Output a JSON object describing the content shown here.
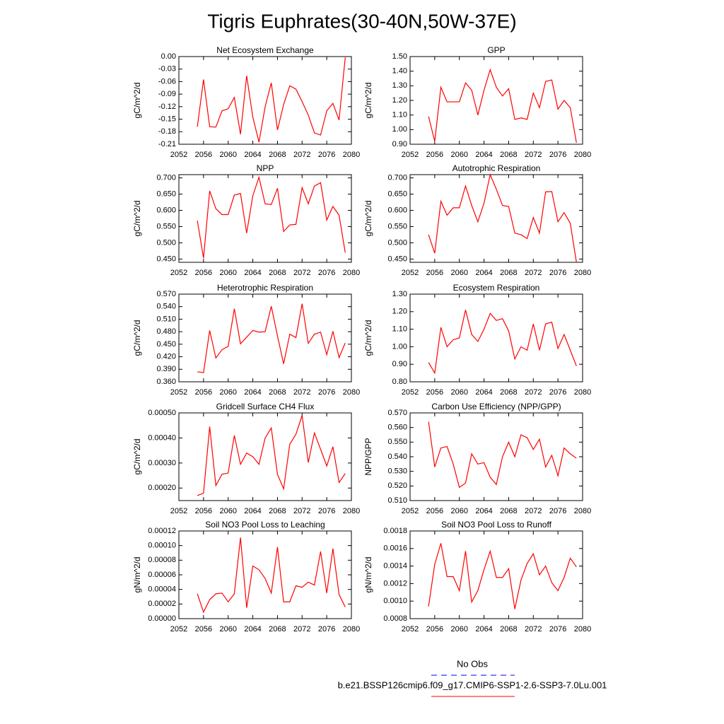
{
  "title": "Tigris Euphrates(30-40N,50W-37E)",
  "legend": [
    {
      "label": "No Obs",
      "color": "#0000ff",
      "dash": true
    },
    {
      "label": "b.e21.BSSP126cmip6.f09_g17.CMIP6-SSP1-2.6-SSP3-7.0Lu.001",
      "color": "#ff0000",
      "dash": false
    }
  ],
  "chart_data": [
    {
      "type": "line",
      "title": "Net Ecosystem Exchange",
      "y_label": "gC/m^2/d",
      "color": "#ff0000",
      "x": [
        2055,
        2056,
        2057,
        2058,
        2059,
        2060,
        2061,
        2062,
        2063,
        2064,
        2065,
        2066,
        2067,
        2068,
        2069,
        2070,
        2071,
        2072,
        2073,
        2074,
        2075,
        2076,
        2077,
        2078,
        2079
      ],
      "values": [
        -0.168,
        -0.055,
        -0.168,
        -0.169,
        -0.13,
        -0.125,
        -0.098,
        -0.186,
        -0.046,
        -0.145,
        -0.205,
        -0.12,
        -0.063,
        -0.176,
        -0.115,
        -0.07,
        -0.078,
        -0.108,
        -0.14,
        -0.183,
        -0.188,
        -0.13,
        -0.112,
        -0.152,
        -0.002
      ],
      "xlim": [
        2052,
        2080
      ],
      "xticks": [
        2052,
        2056,
        2060,
        2064,
        2068,
        2072,
        2076,
        2080
      ],
      "ylim": [
        -0.21,
        0.0
      ],
      "yticks": [
        -0.21,
        -0.18,
        -0.15,
        -0.12,
        -0.09,
        -0.06,
        -0.03,
        {
          "value": 0.0,
          "label": "0.00"
        }
      ]
    },
    {
      "type": "line",
      "title": "GPP",
      "y_label": "gC/m^2/d",
      "color": "#ff0000",
      "x": [
        2055,
        2056,
        2057,
        2058,
        2059,
        2060,
        2061,
        2062,
        2063,
        2064,
        2065,
        2066,
        2067,
        2068,
        2069,
        2070,
        2071,
        2072,
        2073,
        2074,
        2075,
        2076,
        2077,
        2078,
        2079
      ],
      "values": [
        1.09,
        0.92,
        1.29,
        1.19,
        1.19,
        1.19,
        1.32,
        1.27,
        1.1,
        1.27,
        1.41,
        1.29,
        1.23,
        1.28,
        1.07,
        1.08,
        1.07,
        1.25,
        1.15,
        1.33,
        1.34,
        1.14,
        1.2,
        1.15,
        0.91
      ],
      "xlim": [
        2052,
        2080
      ],
      "xticks": [
        2052,
        2056,
        2060,
        2064,
        2068,
        2072,
        2076,
        2080
      ],
      "ylim": [
        0.9,
        1.5
      ],
      "yticks": [
        {
          "value": 0.9,
          "label": "0.90"
        },
        {
          "value": 1.0,
          "label": "1.00"
        },
        {
          "value": 1.1,
          "label": "1.10"
        },
        {
          "value": 1.2,
          "label": "1.20"
        },
        {
          "value": 1.3,
          "label": "1.30"
        },
        {
          "value": 1.4,
          "label": "1.40"
        },
        {
          "value": 1.5,
          "label": "1.50"
        }
      ]
    },
    {
      "type": "line",
      "title": "NPP",
      "y_label": "gC/m^2/d",
      "color": "#ff0000",
      "x": [
        2055,
        2056,
        2057,
        2058,
        2059,
        2060,
        2061,
        2062,
        2063,
        2064,
        2065,
        2066,
        2067,
        2068,
        2069,
        2070,
        2071,
        2072,
        2073,
        2074,
        2075,
        2076,
        2077,
        2078,
        2079
      ],
      "values": [
        0.568,
        0.453,
        0.66,
        0.605,
        0.587,
        0.587,
        0.647,
        0.652,
        0.53,
        0.645,
        0.702,
        0.62,
        0.618,
        0.668,
        0.535,
        0.555,
        0.557,
        0.67,
        0.62,
        0.675,
        0.685,
        0.57,
        0.612,
        0.585,
        0.47
      ],
      "xlim": [
        2052,
        2080
      ],
      "xticks": [
        2052,
        2056,
        2060,
        2064,
        2068,
        2072,
        2076,
        2080
      ],
      "ylim": [
        0.44,
        0.71
      ],
      "yticks": [
        {
          "value": 0.45,
          "label": "0.450"
        },
        {
          "value": 0.5,
          "label": "0.500"
        },
        {
          "value": 0.55,
          "label": "0.550"
        },
        {
          "value": 0.6,
          "label": "0.600"
        },
        {
          "value": 0.65,
          "label": "0.650"
        },
        {
          "value": 0.7,
          "label": "0.700"
        }
      ]
    },
    {
      "type": "line",
      "title": "Autotrophic Respiration",
      "y_label": "gC/m^2/d",
      "color": "#ff0000",
      "x": [
        2055,
        2056,
        2057,
        2058,
        2059,
        2060,
        2061,
        2062,
        2063,
        2064,
        2065,
        2066,
        2067,
        2068,
        2069,
        2070,
        2071,
        2072,
        2073,
        2074,
        2075,
        2076,
        2077,
        2078,
        2079
      ],
      "values": [
        0.525,
        0.468,
        0.628,
        0.585,
        0.608,
        0.608,
        0.675,
        0.615,
        0.565,
        0.622,
        0.71,
        0.665,
        0.615,
        0.612,
        0.53,
        0.525,
        0.513,
        0.578,
        0.53,
        0.657,
        0.658,
        0.565,
        0.593,
        0.56,
        0.44
      ],
      "xlim": [
        2052,
        2080
      ],
      "xticks": [
        2052,
        2056,
        2060,
        2064,
        2068,
        2072,
        2076,
        2080
      ],
      "ylim": [
        0.44,
        0.71
      ],
      "yticks": [
        {
          "value": 0.45,
          "label": "0.450"
        },
        {
          "value": 0.5,
          "label": "0.500"
        },
        {
          "value": 0.55,
          "label": "0.550"
        },
        {
          "value": 0.6,
          "label": "0.600"
        },
        {
          "value": 0.65,
          "label": "0.650"
        },
        {
          "value": 0.7,
          "label": "0.700"
        }
      ]
    },
    {
      "type": "line",
      "title": "Heterotrophic Respiration",
      "y_label": "gC/m^2/d",
      "color": "#ff0000",
      "x": [
        2055,
        2056,
        2057,
        2058,
        2059,
        2060,
        2061,
        2062,
        2063,
        2064,
        2065,
        2066,
        2067,
        2068,
        2069,
        2070,
        2071,
        2072,
        2073,
        2074,
        2075,
        2076,
        2077,
        2078,
        2079
      ],
      "values": [
        0.384,
        0.382,
        0.483,
        0.417,
        0.437,
        0.445,
        0.535,
        0.451,
        0.467,
        0.483,
        0.479,
        0.48,
        0.541,
        0.47,
        0.403,
        0.474,
        0.466,
        0.547,
        0.452,
        0.474,
        0.479,
        0.425,
        0.481,
        0.418,
        0.453
      ],
      "xlim": [
        2052,
        2080
      ],
      "xticks": [
        2052,
        2056,
        2060,
        2064,
        2068,
        2072,
        2076,
        2080
      ],
      "ylim": [
        0.36,
        0.57
      ],
      "yticks": [
        {
          "value": 0.36,
          "label": "0.360"
        },
        {
          "value": 0.39,
          "label": "0.390"
        },
        {
          "value": 0.42,
          "label": "0.420"
        },
        {
          "value": 0.45,
          "label": "0.450"
        },
        {
          "value": 0.48,
          "label": "0.480"
        },
        {
          "value": 0.51,
          "label": "0.510"
        },
        {
          "value": 0.54,
          "label": "0.540"
        },
        {
          "value": 0.57,
          "label": "0.570"
        }
      ]
    },
    {
      "type": "line",
      "title": "Ecosystem Respiration",
      "y_label": "gC/m^2/d",
      "color": "#ff0000",
      "x": [
        2055,
        2056,
        2057,
        2058,
        2059,
        2060,
        2061,
        2062,
        2063,
        2064,
        2065,
        2066,
        2067,
        2068,
        2069,
        2070,
        2071,
        2072,
        2073,
        2074,
        2075,
        2076,
        2077,
        2078,
        2079
      ],
      "values": [
        0.91,
        0.85,
        1.11,
        1.0,
        1.04,
        1.05,
        1.21,
        1.07,
        1.03,
        1.1,
        1.19,
        1.15,
        1.16,
        1.09,
        0.93,
        1.0,
        0.98,
        1.13,
        0.98,
        1.13,
        1.14,
        0.99,
        1.07,
        0.98,
        0.89
      ],
      "xlim": [
        2052,
        2080
      ],
      "xticks": [
        2052,
        2056,
        2060,
        2064,
        2068,
        2072,
        2076,
        2080
      ],
      "ylim": [
        0.8,
        1.3
      ],
      "yticks": [
        {
          "value": 0.8,
          "label": "0.80"
        },
        {
          "value": 0.9,
          "label": "0.90"
        },
        {
          "value": 1.0,
          "label": "1.00"
        },
        {
          "value": 1.1,
          "label": "1.10"
        },
        {
          "value": 1.2,
          "label": "1.20"
        },
        {
          "value": 1.3,
          "label": "1.30"
        }
      ]
    },
    {
      "type": "line",
      "title": "Gridcell Surface CH4 Flux",
      "y_label": "gC/m^2/d",
      "color": "#ff0000",
      "x": [
        2055,
        2056,
        2057,
        2058,
        2059,
        2060,
        2061,
        2062,
        2063,
        2064,
        2065,
        2066,
        2067,
        2068,
        2069,
        2070,
        2071,
        2072,
        2073,
        2074,
        2075,
        2076,
        2077,
        2078,
        2079
      ],
      "values": [
        0.00017,
        0.00018,
        0.000445,
        0.00021,
        0.000255,
        0.00026,
        0.00041,
        0.000295,
        0.00034,
        0.000325,
        0.000295,
        0.0004,
        0.00044,
        0.000255,
        0.000197,
        0.000375,
        0.000415,
        0.00049,
        0.000302,
        0.00042,
        0.000355,
        0.000288,
        0.000365,
        0.000222,
        0.000258
      ],
      "xlim": [
        2052,
        2080
      ],
      "xticks": [
        2052,
        2056,
        2060,
        2064,
        2068,
        2072,
        2076,
        2080
      ],
      "ylim": [
        0.00015,
        0.0005
      ],
      "yticks": [
        {
          "value": 0.0002,
          "label": "0.00020"
        },
        {
          "value": 0.0003,
          "label": "0.00030"
        },
        {
          "value": 0.0004,
          "label": "0.00040"
        },
        {
          "value": 0.0005,
          "label": "0.00050"
        }
      ]
    },
    {
      "type": "line",
      "title": "Carbon Use Efficiency (NPP/GPP)",
      "y_label": "NPP/GPP",
      "color": "#ff0000",
      "x": [
        2055,
        2056,
        2057,
        2058,
        2059,
        2060,
        2061,
        2062,
        2063,
        2064,
        2065,
        2066,
        2067,
        2068,
        2069,
        2070,
        2071,
        2072,
        2073,
        2074,
        2075,
        2076,
        2077,
        2078,
        2079
      ],
      "values": [
        0.564,
        0.533,
        0.546,
        0.547,
        0.535,
        0.519,
        0.522,
        0.542,
        0.535,
        0.536,
        0.526,
        0.521,
        0.54,
        0.55,
        0.54,
        0.555,
        0.553,
        0.545,
        0.552,
        0.533,
        0.541,
        0.527,
        0.546,
        0.542,
        0.539
      ],
      "xlim": [
        2052,
        2080
      ],
      "xticks": [
        2052,
        2056,
        2060,
        2064,
        2068,
        2072,
        2076,
        2080
      ],
      "ylim": [
        0.51,
        0.57
      ],
      "yticks": [
        {
          "value": 0.51,
          "label": "0.510"
        },
        {
          "value": 0.52,
          "label": "0.520"
        },
        {
          "value": 0.53,
          "label": "0.530"
        },
        {
          "value": 0.54,
          "label": "0.540"
        },
        {
          "value": 0.55,
          "label": "0.550"
        },
        {
          "value": 0.56,
          "label": "0.560"
        },
        {
          "value": 0.57,
          "label": "0.570"
        }
      ]
    },
    {
      "type": "line",
      "title": "Soil NO3 Pool Loss to Leaching",
      "y_label": "gN/m^2/d",
      "color": "#ff0000",
      "x": [
        2055,
        2056,
        2057,
        2058,
        2059,
        2060,
        2061,
        2062,
        2063,
        2064,
        2065,
        2066,
        2067,
        2068,
        2069,
        2070,
        2071,
        2072,
        2073,
        2074,
        2075,
        2076,
        2077,
        2078,
        2079
      ],
      "values": [
        3.4e-05,
        9e-06,
        2.6e-05,
        3.4e-05,
        3.5e-05,
        2.3e-05,
        3.4e-05,
        0.000111,
        1.5e-05,
        7.2e-05,
        6.7e-05,
        5.5e-05,
        3.5e-05,
        9.8e-05,
        2.3e-05,
        2.3e-05,
        4.5e-05,
        4.3e-05,
        5e-05,
        4.6e-05,
        9.2e-05,
        3.5e-05,
        9.6e-05,
        3.3e-05,
        1.6e-05
      ],
      "xlim": [
        2052,
        2080
      ],
      "xticks": [
        2052,
        2056,
        2060,
        2064,
        2068,
        2072,
        2076,
        2080
      ],
      "ylim": [
        0.0,
        0.00012
      ],
      "yticks": [
        {
          "value": 0.0,
          "label": "0.00000"
        },
        {
          "value": 2e-05,
          "label": "0.00002"
        },
        {
          "value": 4e-05,
          "label": "0.00004"
        },
        {
          "value": 6e-05,
          "label": "0.00006"
        },
        {
          "value": 8e-05,
          "label": "0.00008"
        },
        {
          "value": 0.0001,
          "label": "0.00010"
        },
        {
          "value": 0.00012,
          "label": "0.00012"
        }
      ]
    },
    {
      "type": "line",
      "title": "Soil NO3 Pool Loss to Runoff",
      "y_label": "gN/m^2/d",
      "color": "#ff0000",
      "x": [
        2055,
        2056,
        2057,
        2058,
        2059,
        2060,
        2061,
        2062,
        2063,
        2064,
        2065,
        2066,
        2067,
        2068,
        2069,
        2070,
        2071,
        2072,
        2073,
        2074,
        2075,
        2076,
        2077,
        2078,
        2079
      ],
      "values": [
        0.00094,
        0.00142,
        0.00166,
        0.00128,
        0.00128,
        0.00112,
        0.00157,
        0.00099,
        0.00112,
        0.00136,
        0.00157,
        0.00127,
        0.00127,
        0.00137,
        0.00091,
        0.00124,
        0.00143,
        0.00154,
        0.0013,
        0.0014,
        0.00121,
        0.00112,
        0.00127,
        0.00149,
        0.00139
      ],
      "xlim": [
        2052,
        2080
      ],
      "xticks": [
        2052,
        2056,
        2060,
        2064,
        2068,
        2072,
        2076,
        2080
      ],
      "ylim": [
        0.0008,
        0.0018
      ],
      "yticks": [
        0.0008,
        {
          "value": 0.001,
          "label": "0.0010"
        },
        0.0012,
        0.0014,
        0.0016,
        0.0018
      ]
    }
  ]
}
